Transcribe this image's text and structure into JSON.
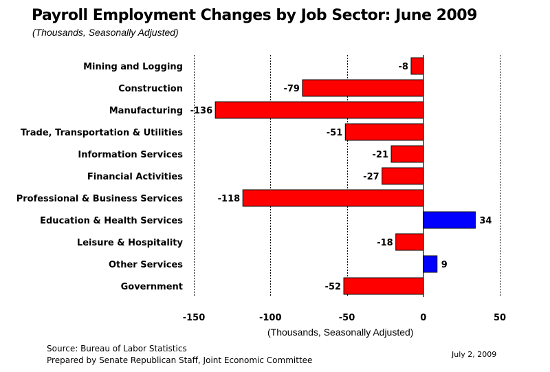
{
  "title": "Payroll Employment Changes by Job Sector:  June 2009",
  "subtitle": "(Thousands, Seasonally Adjusted)",
  "footer": {
    "source": "Source:  Bureau of Labor Statistics",
    "prepared_by": "Prepared by Senate Republican Staff, Joint Economic Committee",
    "date": "July 2, 2009"
  },
  "colors": {
    "negative": "#ff0000",
    "positive": "#0000ff",
    "outline": "#000000",
    "grid": "#000000"
  },
  "chart_data": {
    "type": "bar",
    "orientation": "horizontal",
    "title": "Payroll Employment Changes by Job Sector:  June 2009",
    "subtitle": "(Thousands, Seasonally Adjusted)",
    "xlabel": "(Thousands, Seasonally Adjusted)",
    "ylabel": "",
    "xlim": [
      -150,
      50
    ],
    "xticks": [
      -150,
      -100,
      -50,
      0,
      50
    ],
    "xtick_labels": [
      "-150",
      "-100",
      "-50",
      "0",
      "50"
    ],
    "grid": "vertical dashed lines at major ticks",
    "categories": [
      "Mining and Logging",
      "Construction",
      "Manufacturing",
      "Trade, Transportation & Utilities",
      "Information Services",
      "Financial Activities",
      "Professional & Business Services",
      "Education & Health Services",
      "Leisure & Hospitality",
      "Other Services",
      "Government"
    ],
    "values": [
      -8,
      -79,
      -136,
      -51,
      -21,
      -27,
      -118,
      34,
      -18,
      9,
      -52
    ],
    "value_labels": [
      "-8",
      "-79",
      "-136",
      "-51",
      "-21",
      "-27",
      "-118",
      "34",
      "-18",
      "9",
      "-52"
    ]
  }
}
